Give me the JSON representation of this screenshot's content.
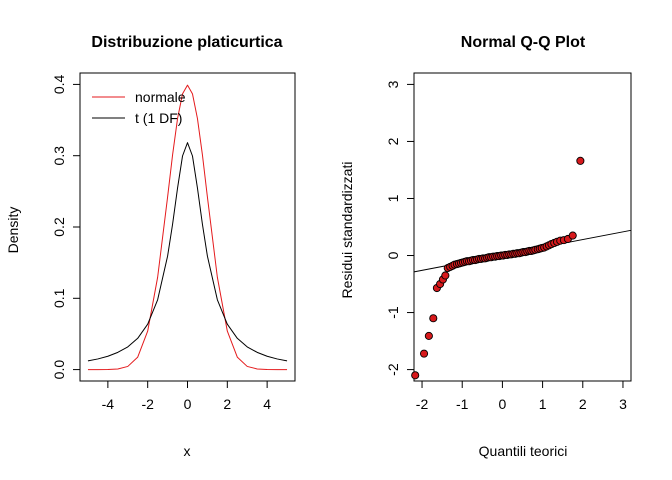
{
  "chart_data": [
    {
      "type": "line",
      "title": "Distribuzione platicurtica",
      "xlabel": "x",
      "ylabel": "Density",
      "xlim": [
        -5,
        5
      ],
      "ylim": [
        0,
        0.4
      ],
      "xticks": [
        -4,
        -2,
        0,
        2,
        4
      ],
      "yticks": [
        0.0,
        0.1,
        0.2,
        0.3,
        0.4
      ],
      "xtick_labels": [
        "-4",
        "-2",
        "0",
        "2",
        "4"
      ],
      "ytick_labels": [
        "0.0",
        "0.1",
        "0.2",
        "0.3",
        "0.4"
      ],
      "x": [
        -5,
        -4.5,
        -4,
        -3.5,
        -3,
        -2.5,
        -2,
        -1.5,
        -1,
        -0.75,
        -0.5,
        -0.25,
        0,
        0.25,
        0.5,
        0.75,
        1,
        1.5,
        2,
        2.5,
        3,
        3.5,
        4,
        4.5,
        5
      ],
      "series": [
        {
          "name": "normale",
          "color": "#e41a1c",
          "values": [
            1.5e-06,
            1.6e-05,
            0.000134,
            0.000873,
            0.004432,
            0.017528,
            0.053991,
            0.129518,
            0.241971,
            0.301137,
            0.352065,
            0.386668,
            0.398942,
            0.386668,
            0.352065,
            0.301137,
            0.241971,
            0.129518,
            0.053991,
            0.017528,
            0.004432,
            0.000873,
            0.000134,
            1.6e-05,
            1.5e-06
          ]
        },
        {
          "name": "t (1 DF)",
          "color": "#000000",
          "values": [
            0.012243,
            0.01496,
            0.018724,
            0.024157,
            0.031831,
            0.043905,
            0.063662,
            0.097942,
            0.159155,
            0.203718,
            0.254648,
            0.299585,
            0.31831,
            0.299585,
            0.254648,
            0.203718,
            0.159155,
            0.097942,
            0.063662,
            0.043905,
            0.031831,
            0.024157,
            0.018724,
            0.01496,
            0.012243
          ]
        }
      ],
      "legend": {
        "position": "top-left",
        "entries": [
          "normale",
          "t (1 DF)"
        ]
      }
    },
    {
      "type": "scatter",
      "title": "Normal Q-Q Plot",
      "xlabel": "Quantili teorici",
      "ylabel": "Residui  standardizzati",
      "xlim": [
        -2.2,
        3.2
      ],
      "ylim": [
        -2.2,
        3.2
      ],
      "xticks": [
        -2,
        -1,
        0,
        1,
        2,
        3
      ],
      "yticks": [
        -2,
        -1,
        0,
        1,
        2,
        3
      ],
      "xtick_labels": [
        "-2",
        "-1",
        "0",
        "1",
        "2",
        "3"
      ],
      "ytick_labels": [
        "-2",
        "-1",
        "0",
        "1",
        "2",
        "3"
      ],
      "point_color": "#d7191c",
      "points": [
        [
          -2.17,
          -2.1
        ],
        [
          -1.95,
          -1.72
        ],
        [
          -1.83,
          -1.41
        ],
        [
          -1.72,
          -1.1
        ],
        [
          -1.63,
          -0.57
        ],
        [
          -1.55,
          -0.5
        ],
        [
          -1.48,
          -0.42
        ],
        [
          -1.42,
          -0.35
        ],
        [
          -1.36,
          -0.22
        ],
        [
          -1.3,
          -0.2
        ],
        [
          -1.24,
          -0.18
        ],
        [
          -1.19,
          -0.16
        ],
        [
          -1.13,
          -0.15
        ],
        [
          -1.08,
          -0.14
        ],
        [
          -1.03,
          -0.13
        ],
        [
          -0.98,
          -0.12
        ],
        [
          -0.93,
          -0.11
        ],
        [
          -0.88,
          -0.1
        ],
        [
          -0.83,
          -0.1
        ],
        [
          -0.78,
          -0.09
        ],
        [
          -0.73,
          -0.08
        ],
        [
          -0.68,
          -0.08
        ],
        [
          -0.63,
          -0.07
        ],
        [
          -0.58,
          -0.06
        ],
        [
          -0.53,
          -0.06
        ],
        [
          -0.48,
          -0.05
        ],
        [
          -0.43,
          -0.05
        ],
        [
          -0.38,
          -0.04
        ],
        [
          -0.33,
          -0.03
        ],
        [
          -0.28,
          -0.03
        ],
        [
          -0.23,
          -0.02
        ],
        [
          -0.18,
          -0.02
        ],
        [
          -0.13,
          -0.01
        ],
        [
          -0.08,
          -0.01
        ],
        [
          -0.03,
          0.0
        ],
        [
          0.02,
          0.0
        ],
        [
          0.07,
          0.01
        ],
        [
          0.12,
          0.01
        ],
        [
          0.17,
          0.02
        ],
        [
          0.22,
          0.02
        ],
        [
          0.27,
          0.03
        ],
        [
          0.32,
          0.03
        ],
        [
          0.37,
          0.04
        ],
        [
          0.42,
          0.04
        ],
        [
          0.47,
          0.05
        ],
        [
          0.52,
          0.06
        ],
        [
          0.57,
          0.06
        ],
        [
          0.62,
          0.07
        ],
        [
          0.67,
          0.08
        ],
        [
          0.72,
          0.08
        ],
        [
          0.77,
          0.09
        ],
        [
          0.82,
          0.1
        ],
        [
          0.88,
          0.11
        ],
        [
          0.93,
          0.12
        ],
        [
          0.98,
          0.13
        ],
        [
          1.04,
          0.14
        ],
        [
          1.1,
          0.16
        ],
        [
          1.16,
          0.18
        ],
        [
          1.22,
          0.2
        ],
        [
          1.29,
          0.22
        ],
        [
          1.36,
          0.24
        ],
        [
          1.44,
          0.26
        ],
        [
          1.53,
          0.27
        ],
        [
          1.63,
          0.29
        ],
        [
          1.75,
          0.35
        ],
        [
          1.94,
          1.66
        ]
      ],
      "reference_line": {
        "intercept": 0.01,
        "slope": 0.135
      }
    }
  ]
}
